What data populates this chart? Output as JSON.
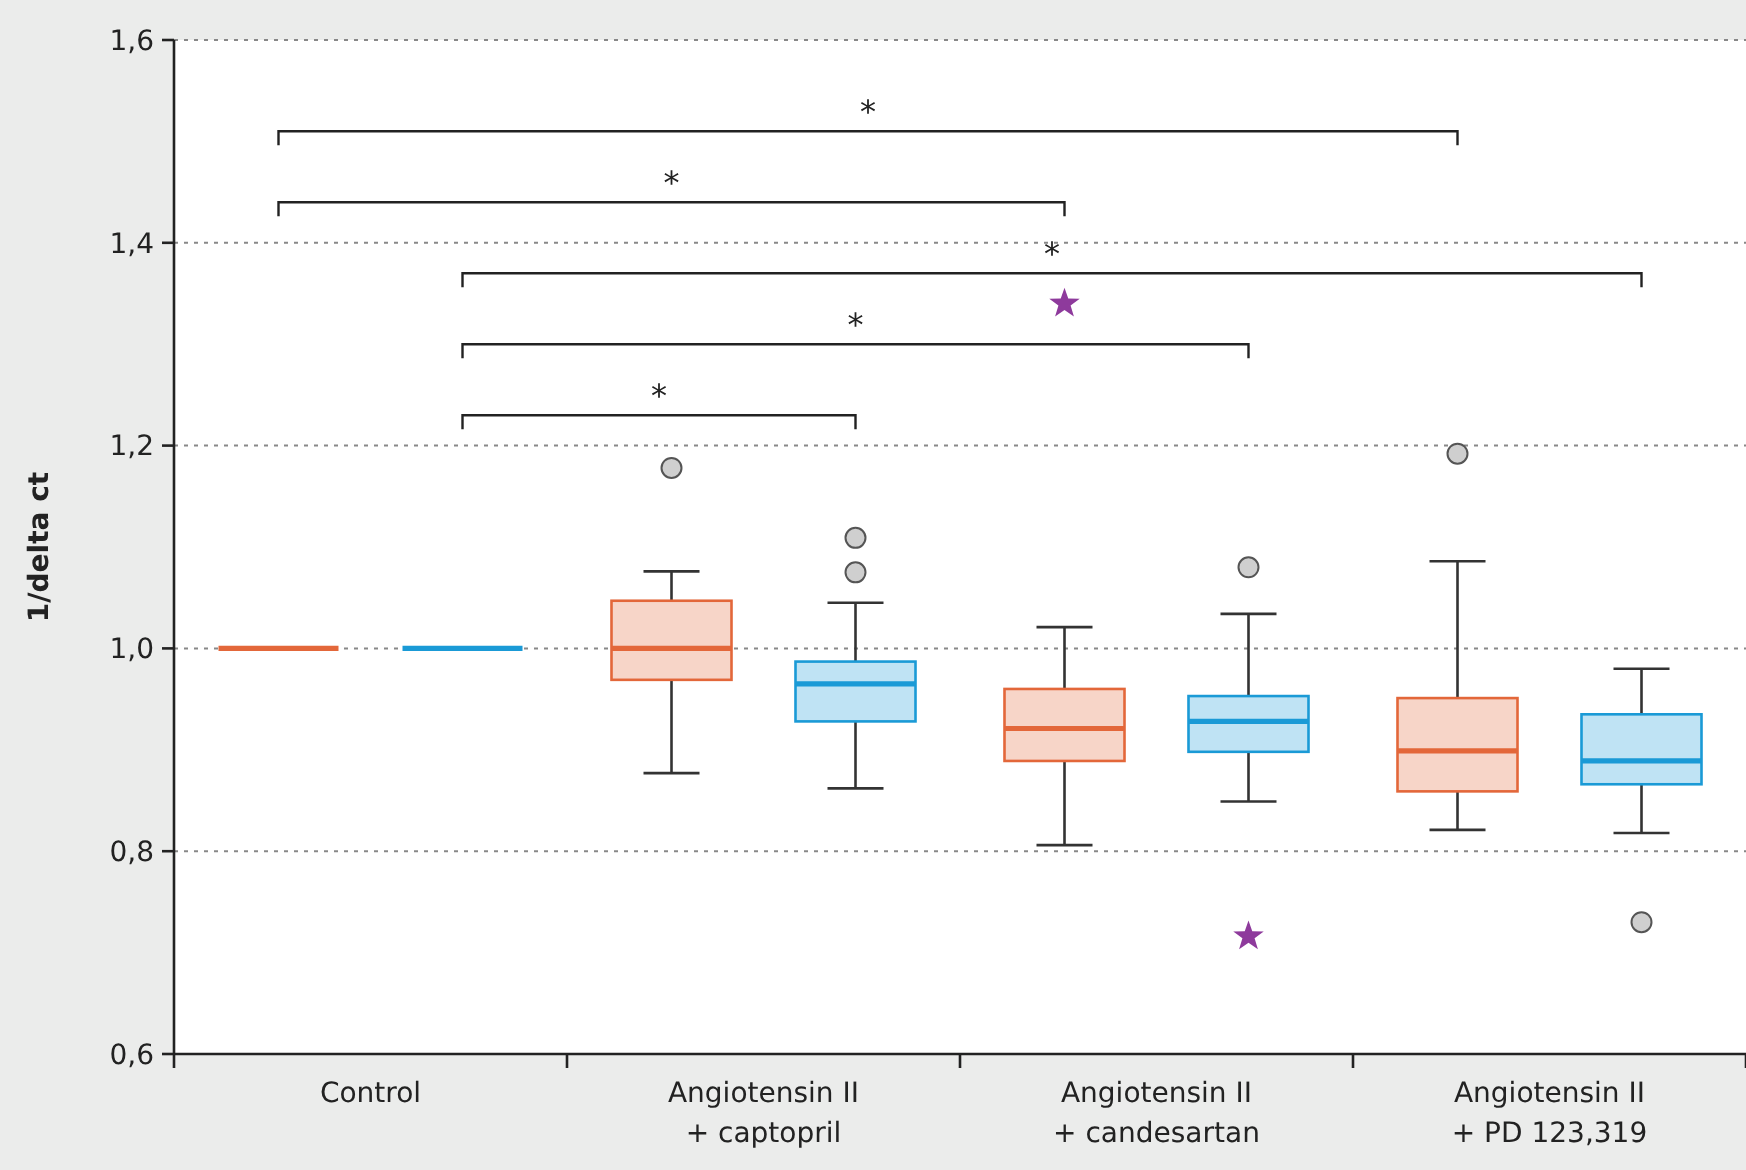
{
  "chart_data": {
    "type": "box",
    "ylabel": "1/delta ct",
    "categories": [
      "Control",
      "Angiotensin II\n+ captopril",
      "Angiotensin II\n+ candesartan",
      "Angiotensin II\n+ PD 123,319"
    ],
    "ylim": [
      0.6,
      1.6
    ],
    "yticks": [
      {
        "value": 0.6,
        "label": "0,6"
      },
      {
        "value": 0.8,
        "label": "0,8"
      },
      {
        "value": 1.0,
        "label": "1,0"
      },
      {
        "value": 1.2,
        "label": "1,2"
      },
      {
        "value": 1.4,
        "label": "1,4"
      },
      {
        "value": 1.6,
        "label": "1,6"
      }
    ],
    "grid": "y",
    "series": [
      {
        "color": "#e3673a",
        "boxes": [
          {
            "low": 1.0,
            "q1": 1.0,
            "median": 1.0,
            "q3": 1.0,
            "high": 1.0
          },
          {
            "low": 0.877,
            "q1": 0.969,
            "median": 1.0,
            "q3": 1.047,
            "high": 1.076,
            "outliers": [
              1.178
            ]
          },
          {
            "low": 0.806,
            "q1": 0.889,
            "median": 0.921,
            "q3": 0.96,
            "high": 1.021,
            "outliers": [
              1.34
            ]
          },
          {
            "low": 0.821,
            "q1": 0.859,
            "median": 0.899,
            "q3": 0.951,
            "high": 1.086,
            "outliers": [
              1.192
            ]
          }
        ]
      },
      {
        "color": "#1a9ad6",
        "boxes": [
          {
            "low": 1.0,
            "q1": 1.0,
            "median": 1.0,
            "q3": 1.0,
            "high": 1.0
          },
          {
            "low": 0.862,
            "q1": 0.928,
            "median": 0.965,
            "q3": 0.987,
            "high": 1.045,
            "outliers": [
              1.109,
              1.075
            ]
          },
          {
            "low": 0.849,
            "q1": 0.898,
            "median": 0.928,
            "q3": 0.953,
            "high": 1.034,
            "outliers": [
              1.08,
              0.716
            ]
          },
          {
            "low": 0.818,
            "q1": 0.866,
            "median": 0.889,
            "q3": 0.935,
            "high": 0.98,
            "outliers": [
              0.73
            ]
          }
        ]
      }
    ],
    "annotations": [
      "*",
      "*",
      "*",
      "*",
      "*"
    ]
  }
}
